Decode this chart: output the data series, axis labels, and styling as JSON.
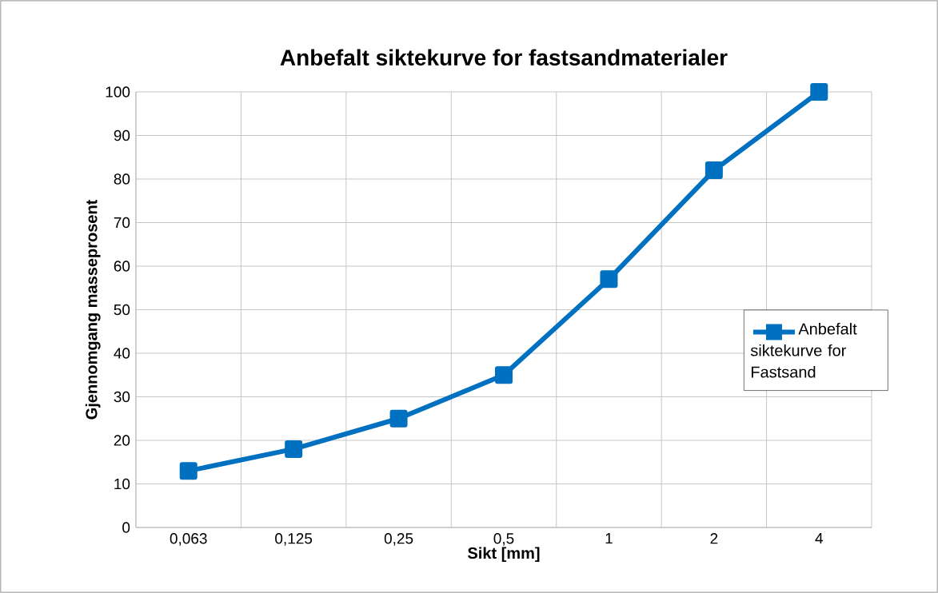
{
  "chart_data": {
    "type": "line",
    "title": "Anbefalt siktekurve for fastsandmaterialer",
    "xlabel": "Sikt [mm]",
    "ylabel": "Gjennomgang masseprosent",
    "categories": [
      "0,063",
      "0,125",
      "0,25",
      "0,5",
      "1",
      "2",
      "4"
    ],
    "series": [
      {
        "name": "Anbefalt siktekurve for Fastsand",
        "color": "#0070c0",
        "values": [
          13,
          18,
          25,
          35,
          57,
          82,
          100
        ]
      }
    ],
    "ylim": [
      0,
      100
    ],
    "yticks": [
      0,
      10,
      20,
      30,
      40,
      50,
      60,
      70,
      80,
      90,
      100
    ],
    "grid": true,
    "legend": "right",
    "marker": "square",
    "line_style": "solid"
  }
}
